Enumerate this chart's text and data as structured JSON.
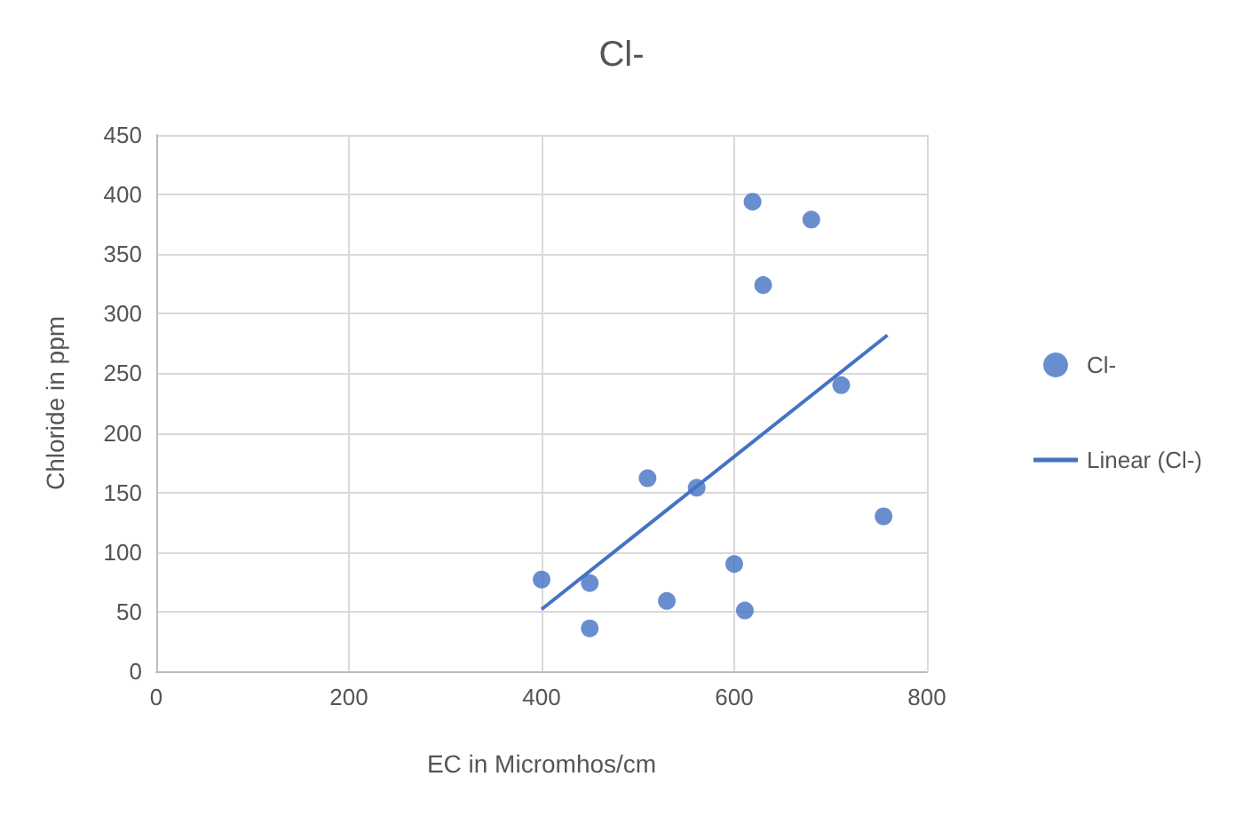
{
  "chart_data": {
    "type": "scatter",
    "title": "Cl-",
    "xlabel": "EC in Micromhos/cm",
    "ylabel": "Chloride in ppm",
    "xlim": [
      0,
      800
    ],
    "xticks": [
      0,
      200,
      400,
      600,
      800
    ],
    "ylim": [
      0,
      450
    ],
    "yticks": [
      0,
      50,
      100,
      150,
      200,
      250,
      300,
      350,
      400,
      450
    ],
    "grid": true,
    "legend": "right",
    "series": [
      {
        "name": "Cl-",
        "color": "#4472c4",
        "marker": "circle",
        "x": [
          619,
          680,
          630,
          711,
          510,
          561,
          755,
          400,
          450,
          600,
          530,
          611,
          450
        ],
        "values": [
          394,
          379,
          324,
          240,
          162,
          154,
          130,
          77,
          74,
          90,
          59,
          51,
          36
        ]
      },
      {
        "name": "Linear (Cl-)",
        "type": "line",
        "color": "#4472c4",
        "line_style": "solid",
        "marker": "none",
        "x": [
          400,
          759
        ],
        "values": [
          52,
          282
        ]
      }
    ]
  }
}
